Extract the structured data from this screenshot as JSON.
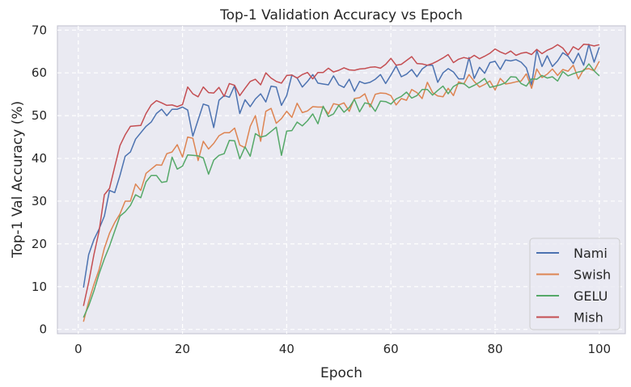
{
  "chart_data": {
    "type": "line",
    "title": "Top-1 Validation Accuracy vs Epoch",
    "xlabel": "Epoch",
    "ylabel": "Top-1 Val Accuracy (%)",
    "xlim": [
      -4,
      105
    ],
    "ylim": [
      -1,
      71
    ],
    "xticks": [
      0,
      20,
      40,
      60,
      80,
      100
    ],
    "yticks": [
      0,
      10,
      20,
      30,
      40,
      50,
      60,
      70
    ],
    "grid": true,
    "legend_position": "bottom-right",
    "x": [
      1,
      2,
      3,
      4,
      5,
      6,
      7,
      8,
      9,
      10,
      11,
      12,
      13,
      14,
      15,
      16,
      17,
      18,
      19,
      20,
      21,
      22,
      23,
      24,
      25,
      26,
      27,
      28,
      29,
      30,
      31,
      32,
      33,
      34,
      35,
      36,
      37,
      38,
      39,
      40,
      41,
      42,
      43,
      44,
      45,
      46,
      47,
      48,
      49,
      50,
      51,
      52,
      53,
      54,
      55,
      56,
      57,
      58,
      59,
      60,
      61,
      62,
      63,
      64,
      65,
      66,
      67,
      68,
      69,
      70,
      71,
      72,
      73,
      74,
      75,
      76,
      77,
      78,
      79,
      80,
      81,
      82,
      83,
      84,
      85,
      86,
      87,
      88,
      89,
      90,
      91,
      92,
      93,
      94,
      95,
      96,
      97,
      98,
      99,
      100
    ],
    "series": [
      {
        "name": "Nami",
        "color": "#4c72b0",
        "values": [
          9.8,
          17.5,
          21,
          23.5,
          26.5,
          32.5,
          32,
          36,
          40.5,
          41.5,
          44.5,
          46,
          47.5,
          48.5,
          50.5,
          51.5,
          50,
          51.5,
          51.5,
          52,
          51.3,
          45.2,
          49,
          52.7,
          52.3,
          47.2,
          53.6,
          54.7,
          54.3,
          57,
          50.5,
          53.7,
          52.1,
          53.9,
          55.1,
          53.2,
          56.9,
          56.7,
          52.4,
          54.7,
          59.5,
          58.8,
          56.7,
          58,
          59.6,
          57.6,
          57.4,
          57.2,
          59.3,
          57.2,
          56.6,
          58.5,
          55.7,
          58,
          57.5,
          57.8,
          58.5,
          59.6,
          57.5,
          59.5,
          61.6,
          59.1,
          59.7,
          60.8,
          59.1,
          60.9,
          61.8,
          61.8,
          57.8,
          60,
          61,
          60.2,
          58.6,
          58.6,
          63.6,
          58.7,
          61.3,
          59.9,
          62.4,
          62.7,
          60.8,
          63,
          62.8,
          63.1,
          62.5,
          61.2,
          57.2,
          65.3,
          61.5,
          64,
          61.5,
          62.8,
          64.7,
          63.9,
          62.2,
          64.6,
          61.8,
          66.7,
          62.5,
          66
        ]
      },
      {
        "name": "Swish",
        "color": "#dd8452",
        "values": [
          1.8,
          6.5,
          10.5,
          14,
          19,
          22.5,
          25,
          27,
          30,
          30,
          34,
          32.5,
          36.5,
          37.5,
          38.5,
          38.4,
          41.1,
          41.5,
          43.2,
          40.3,
          45,
          44.7,
          39.5,
          44,
          42.2,
          43.5,
          45.3,
          46,
          46,
          47.1,
          43.1,
          42.5,
          47.5,
          50,
          44,
          51,
          51.7,
          48.2,
          49.3,
          51,
          49.6,
          52.9,
          50.7,
          51.1,
          52.1,
          52,
          52,
          50.4,
          52.8,
          52.5,
          53,
          51,
          54,
          54.2,
          55.1,
          52,
          55,
          55.3,
          55.2,
          54.7,
          52.5,
          54,
          53.6,
          56.1,
          55.4,
          54,
          57.8,
          55.4,
          54.6,
          54.4,
          56.4,
          54.7,
          57.9,
          57.4,
          59.6,
          58,
          56.7,
          57.3,
          58.1,
          56,
          58.7,
          57.4,
          57.6,
          57.9,
          58.1,
          59.8,
          56.4,
          60.9,
          58.9,
          59.7,
          60.9,
          59.4,
          60.8,
          60.4,
          61.8,
          58.6,
          60.8,
          61,
          60.5,
          62.7
        ]
      },
      {
        "name": "GELU",
        "color": "#55a868",
        "values": [
          2.8,
          5.5,
          9,
          13,
          16.5,
          19.5,
          23,
          26.5,
          27.5,
          29,
          31.5,
          30.8,
          34.5,
          36,
          36,
          34.4,
          34.6,
          40.3,
          37.5,
          38.2,
          40.8,
          40.7,
          40.6,
          40.1,
          36.3,
          39.6,
          40.7,
          41.1,
          44.2,
          44.1,
          39.9,
          42.7,
          40.5,
          45.8,
          45,
          45.3,
          46.3,
          47.3,
          40.7,
          46.4,
          46.5,
          48.5,
          47.6,
          48.8,
          50.4,
          48.1,
          52.2,
          49.8,
          50.4,
          52.4,
          50.8,
          51.9,
          53.8,
          50.9,
          53,
          52.7,
          51,
          53.4,
          53.3,
          52.7,
          53.9,
          54.5,
          55.5,
          54.1,
          54.7,
          56.1,
          56.1,
          54.8,
          55.9,
          56.9,
          55.1,
          56.8,
          57.5,
          57.5,
          56.5,
          57.1,
          57.8,
          58.7,
          56.6,
          56.9,
          57.2,
          57.7,
          59.1,
          59,
          57.5,
          56.9,
          58.6,
          58.5,
          59.4,
          58.8,
          59.1,
          58.1,
          60.3,
          59.3,
          59.8,
          60.2,
          60.5,
          62.1,
          60.5,
          59.3
        ]
      },
      {
        "name": "Mish",
        "color": "#c44e52",
        "values": [
          5.5,
          11,
          17.5,
          23,
          31.5,
          33,
          38,
          43,
          45.5,
          47.5,
          47.6,
          47.7,
          50.5,
          52.5,
          53.5,
          53,
          52.4,
          52.5,
          52.1,
          52.6,
          56.7,
          55.1,
          54.4,
          56.7,
          55.4,
          55.3,
          56.6,
          54.5,
          57.5,
          57.1,
          54.7,
          56.4,
          58,
          58.5,
          57.2,
          60,
          58.8,
          58,
          57.6,
          59.4,
          59.5,
          58.8,
          59.6,
          60.1,
          58.6,
          60.1,
          60.1,
          61.1,
          60.2,
          60.6,
          61.2,
          60.7,
          60.6,
          60.9,
          61,
          61.3,
          61.4,
          61.1,
          62,
          63.4,
          61.8,
          62,
          62.9,
          63.8,
          62.2,
          62.1,
          61.8,
          62.2,
          62.8,
          63.5,
          64.3,
          62.4,
          63.2,
          63.6,
          63.3,
          64.1,
          63.3,
          63.9,
          64.6,
          65.6,
          64.9,
          64.4,
          65.1,
          64.1,
          64.6,
          64.8,
          64.3,
          65.5,
          64.5,
          65.3,
          65.8,
          66.6,
          65.8,
          64.2,
          66.1,
          65.4,
          66.7,
          66.6,
          66.3,
          66.6
        ]
      }
    ]
  }
}
